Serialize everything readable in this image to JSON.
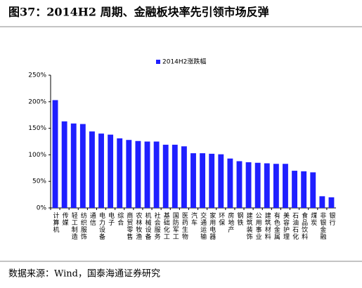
{
  "chart_data": {
    "type": "bar",
    "title": "图37：2014H2 周期、金融板块率先引领市场反弹",
    "source": "数据来源：Wind，国泰海通证券研究",
    "categories": [
      "计算机",
      "传媒",
      "轻工制造",
      "纺织服饰",
      "通信",
      "电力设备",
      "电子",
      "综合",
      "商贸零售",
      "农林牧渔",
      "机械设备",
      "社会服务",
      "基础化工",
      "国防军工",
      "医药生物",
      "汽车",
      "交通运输",
      "家用电器",
      "环保",
      "房地产",
      "钢铁",
      "建筑装饰",
      "公用事业",
      "建筑材料",
      "有色金属",
      "美容护理",
      "石油石化",
      "食品饮料",
      "煤炭",
      "非银金融",
      "银行"
    ],
    "series": [
      {
        "name": "2014H2涨跌幅",
        "color": "#1f1fff",
        "values": [
          203,
          163,
          159,
          158,
          144,
          140,
          138,
          131,
          128,
          126,
          125,
          125,
          119,
          119,
          116,
          103,
          103,
          102,
          101,
          93,
          88,
          86,
          85,
          84,
          83,
          83,
          70,
          69,
          67,
          22,
          20
        ]
      }
    ],
    "ylim": [
      0,
      250
    ],
    "yticks": [
      {
        "value": 0,
        "label": "0%"
      },
      {
        "value": 50,
        "label": "50%"
      },
      {
        "value": 100,
        "label": "100%"
      },
      {
        "value": 150,
        "label": "150%"
      },
      {
        "value": 200,
        "label": "200%"
      },
      {
        "value": 250,
        "label": "250%"
      }
    ],
    "legend": "top"
  }
}
